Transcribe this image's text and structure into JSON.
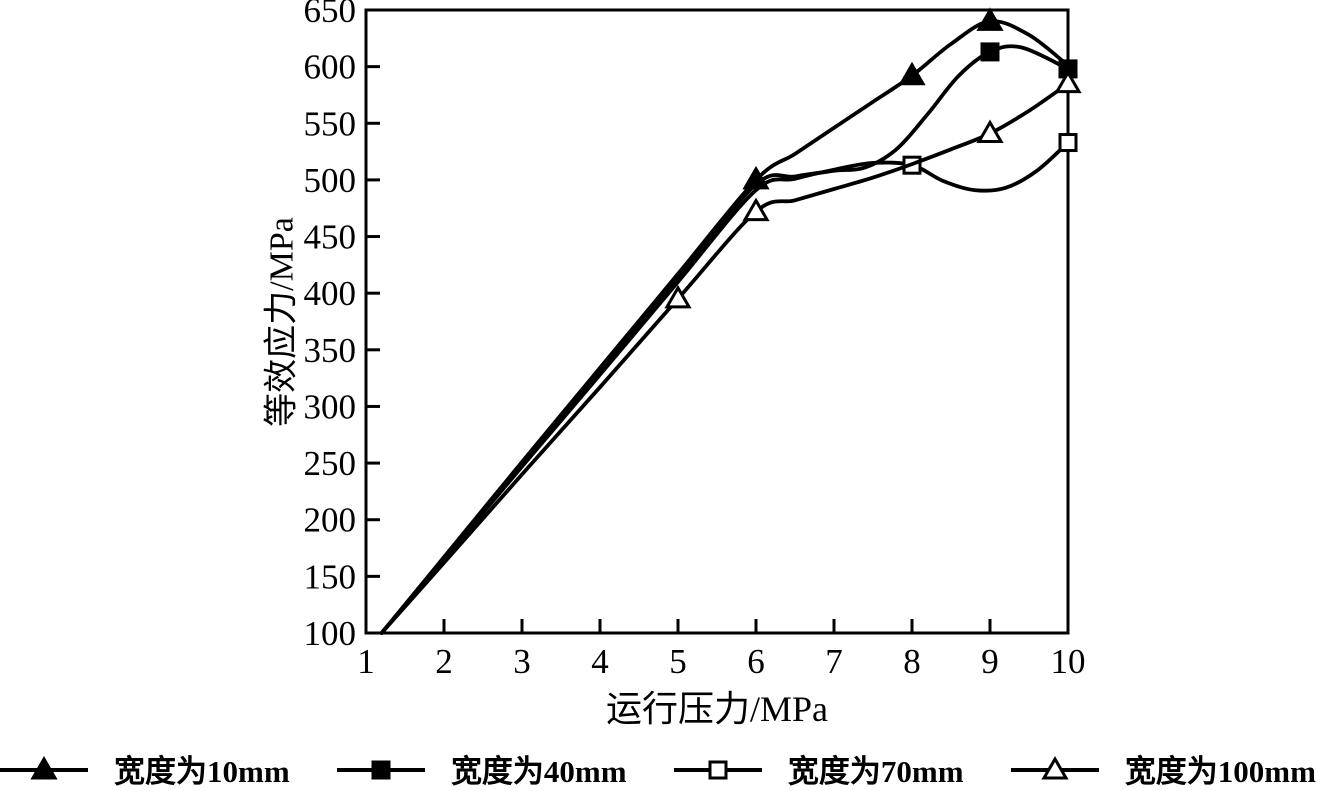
{
  "figure": {
    "background": "#ffffff",
    "ink_color": "#000000"
  },
  "chart_data": {
    "type": "line",
    "title": "",
    "xlabel": "运行压力/MPa",
    "ylabel": "等效应力/MPa",
    "xlim": [
      1,
      10
    ],
    "ylim": [
      100,
      650
    ],
    "xticks": [
      1,
      2,
      3,
      4,
      5,
      6,
      7,
      8,
      9,
      10
    ],
    "yticks": [
      100,
      150,
      200,
      250,
      300,
      350,
      400,
      450,
      500,
      550,
      600,
      650
    ],
    "grid": false,
    "legend_position": "bottom",
    "series": [
      {
        "name": "宽度为10mm",
        "marker": "triangle-filled",
        "color": "#000000",
        "points": [
          [
            1.2,
            100
          ],
          [
            2,
            167
          ],
          [
            3,
            251
          ],
          [
            4,
            334
          ],
          [
            5,
            417
          ],
          [
            6,
            500
          ],
          [
            6.5,
            523
          ],
          [
            7,
            546
          ],
          [
            7.5,
            569
          ],
          [
            8,
            592
          ],
          [
            8.5,
            620
          ],
          [
            9,
            640
          ],
          [
            9.5,
            628
          ],
          [
            10,
            601
          ]
        ],
        "marker_points": [
          [
            6,
            500
          ],
          [
            8,
            592
          ],
          [
            9,
            640
          ]
        ]
      },
      {
        "name": "宽度为40mm",
        "marker": "square-filled",
        "color": "#000000",
        "points": [
          [
            1.2,
            100
          ],
          [
            2,
            166
          ],
          [
            3,
            249
          ],
          [
            4,
            331
          ],
          [
            5,
            414
          ],
          [
            6,
            496
          ],
          [
            6.5,
            503
          ],
          [
            7,
            508
          ],
          [
            7.4,
            511
          ],
          [
            7.8,
            527
          ],
          [
            8.2,
            558
          ],
          [
            8.6,
            592
          ],
          [
            9,
            613
          ],
          [
            9.4,
            617
          ],
          [
            10,
            598
          ]
        ],
        "marker_points": [
          [
            9,
            613
          ],
          [
            10,
            598
          ]
        ]
      },
      {
        "name": "宽度为70mm",
        "marker": "square-open",
        "color": "#000000",
        "points": [
          [
            1.2,
            100
          ],
          [
            2,
            165
          ],
          [
            3,
            247
          ],
          [
            4,
            328
          ],
          [
            5,
            410
          ],
          [
            6,
            491
          ],
          [
            6.5,
            501
          ],
          [
            7,
            509
          ],
          [
            7.5,
            515
          ],
          [
            8,
            513
          ],
          [
            8.4,
            499
          ],
          [
            8.8,
            491
          ],
          [
            9.2,
            493
          ],
          [
            9.6,
            508
          ],
          [
            10,
            533
          ]
        ],
        "marker_points": [
          [
            8,
            513
          ],
          [
            10,
            533
          ]
        ]
      },
      {
        "name": "宽度为100mm",
        "marker": "triangle-open",
        "color": "#000000",
        "points": [
          [
            1.2,
            100
          ],
          [
            2,
            162
          ],
          [
            3,
            240
          ],
          [
            4,
            317
          ],
          [
            5,
            395
          ],
          [
            6,
            472
          ],
          [
            6.5,
            482
          ],
          [
            7,
            492
          ],
          [
            7.5,
            502
          ],
          [
            8,
            514
          ],
          [
            8.5,
            527
          ],
          [
            9,
            541
          ],
          [
            9.5,
            561
          ],
          [
            10,
            585
          ]
        ],
        "marker_points": [
          [
            5,
            395
          ],
          [
            6,
            472
          ],
          [
            9,
            541
          ],
          [
            10,
            585
          ]
        ]
      }
    ],
    "legend": [
      {
        "label": "宽度为10mm",
        "marker": "triangle-filled"
      },
      {
        "label": "宽度为40mm",
        "marker": "square-filled"
      },
      {
        "label": "宽度为70mm",
        "marker": "square-open"
      },
      {
        "label": "宽度为100mm",
        "marker": "triangle-open"
      }
    ]
  }
}
